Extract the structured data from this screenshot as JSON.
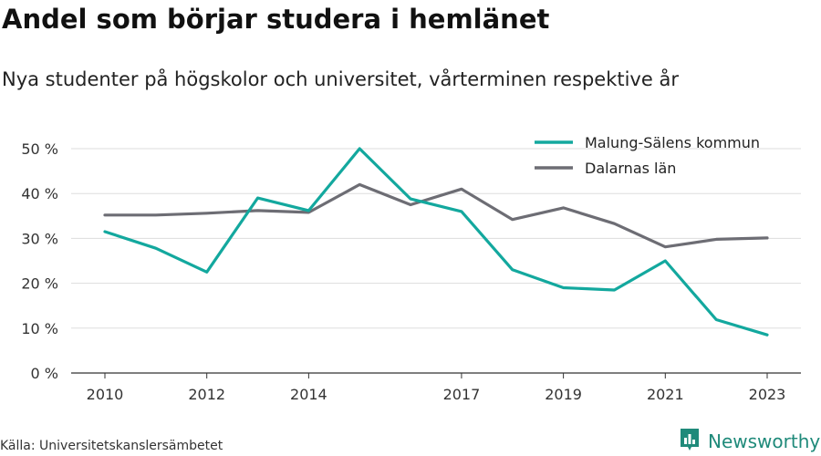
{
  "header": {
    "title": "Andel som börjar studera i hemlänet",
    "subtitle": "Nya studenter på högskolor och universitet, vårterminen respektive år"
  },
  "footer": {
    "source": "Källa: Universitetskanslersämbetet",
    "brand": "Newsworthy"
  },
  "colors": {
    "malung": "#13a89e",
    "dalarna": "#6d6d74",
    "grid": "#dddddd",
    "axis": "#333333",
    "brand": "#1f8a7a"
  },
  "icons": {
    "brand_logo": "bar-chart-logo-icon"
  },
  "chart_data": {
    "type": "line",
    "title": "Andel som börjar studera i hemlänet",
    "subtitle": "Nya studenter på högskolor och universitet, vårterminen respektive år",
    "xlim": [
      2010,
      2023
    ],
    "ylim": [
      0,
      50
    ],
    "yticks": [
      0,
      10,
      20,
      30,
      40,
      50
    ],
    "ytick_labels": [
      "0 %",
      "10 %",
      "20 %",
      "30 %",
      "40 %",
      "50 %"
    ],
    "xticks": [
      2010,
      2012,
      2014,
      2017,
      2019,
      2021,
      2023
    ],
    "xtick_labels": [
      "2010",
      "2012",
      "2014",
      "2017",
      "2019",
      "2021",
      "2023"
    ],
    "grid": true,
    "legend": "top-right",
    "x": [
      2010,
      2011,
      2012,
      2013,
      2014,
      2015,
      2016,
      2017,
      2018,
      2019,
      2020,
      2021,
      2022,
      2023
    ],
    "series": [
      {
        "name": "Malung-Sälens kommun",
        "color": "#13a89e",
        "values": [
          31.5,
          27.8,
          22.5,
          39.0,
          36.2,
          50.0,
          38.8,
          36.0,
          23.0,
          19.0,
          18.5,
          25.0,
          11.9,
          8.5
        ]
      },
      {
        "name": "Dalarnas län",
        "color": "#6d6d74",
        "values": [
          35.2,
          35.2,
          35.6,
          36.2,
          35.8,
          42.0,
          37.5,
          41.0,
          34.2,
          36.8,
          33.3,
          28.1,
          29.8,
          30.1
        ]
      }
    ]
  }
}
